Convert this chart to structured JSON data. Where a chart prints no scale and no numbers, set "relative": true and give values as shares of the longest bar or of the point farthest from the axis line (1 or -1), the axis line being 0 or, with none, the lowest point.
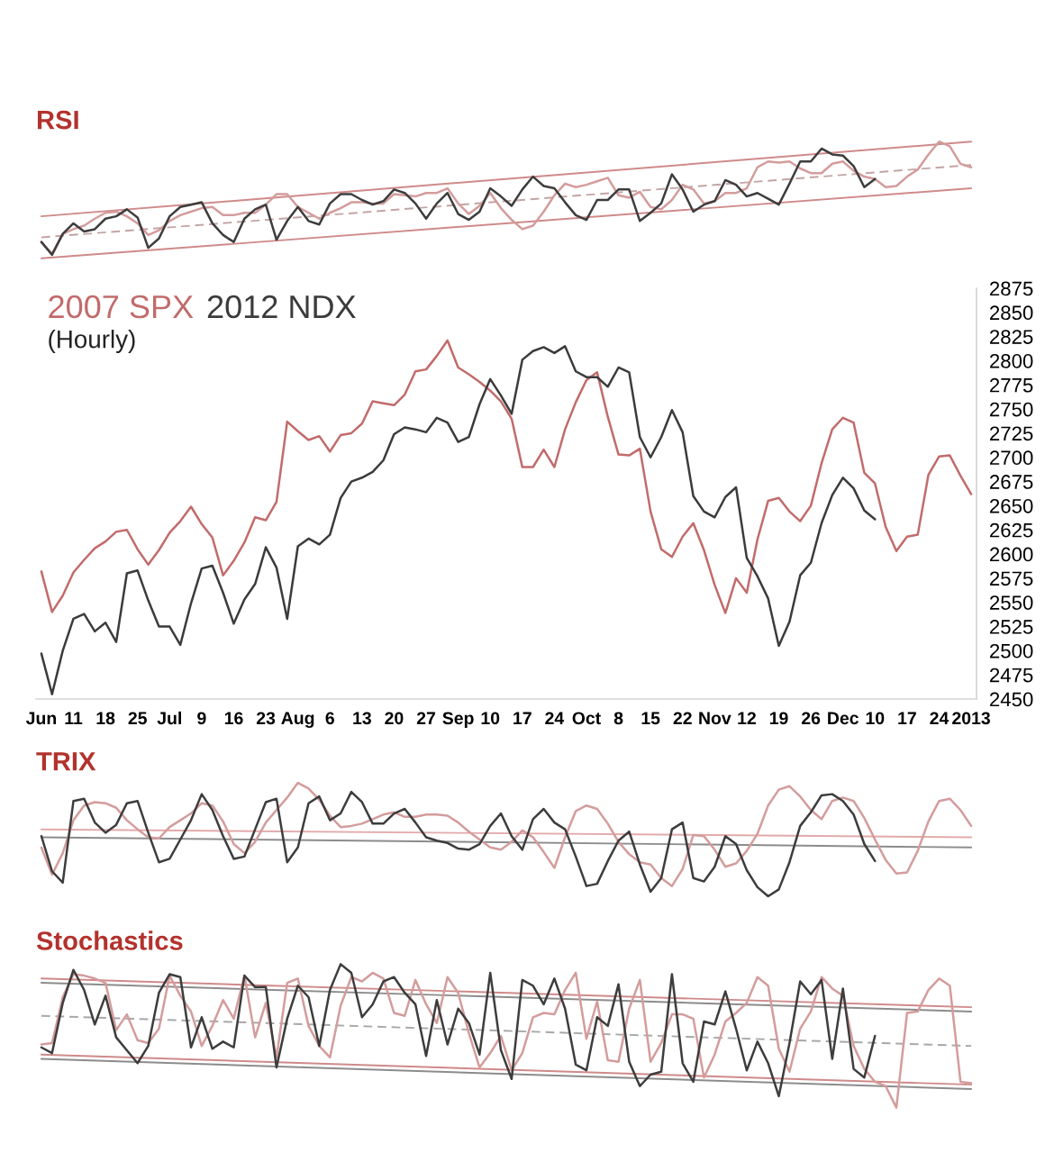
{
  "chart_data": [
    {
      "type": "line",
      "title": "RSI",
      "relative": true,
      "categories": [
        null,
        null,
        null,
        null,
        null,
        null,
        null,
        null,
        null,
        null,
        null,
        null,
        null,
        null,
        null,
        null,
        null,
        null,
        null,
        null,
        null,
        null,
        null,
        null,
        null,
        null,
        null,
        null,
        null,
        null,
        null,
        null,
        null,
        null,
        null,
        null,
        null,
        null,
        null,
        null,
        null,
        null,
        null,
        null,
        null,
        null,
        null,
        null,
        null,
        null,
        null,
        null,
        null,
        null,
        null,
        null,
        null,
        null,
        null,
        null,
        null,
        null,
        null,
        null,
        null,
        null,
        null,
        null,
        null,
        null,
        null,
        null,
        null,
        null,
        null,
        null,
        null,
        null,
        null,
        null,
        null,
        null,
        null,
        null,
        null,
        null,
        null,
        null
      ],
      "series": [
        {
          "color": "#cf8a8a",
          "values": [
            0,
            null,
            null,
            null,
            null,
            null,
            null,
            null,
            null,
            null,
            null,
            null,
            null,
            null,
            null,
            null,
            null,
            null,
            null,
            null,
            null,
            null,
            null,
            null,
            null,
            null,
            null,
            null,
            null,
            null,
            null,
            null,
            null,
            null,
            null,
            null,
            null,
            null,
            null,
            null,
            null,
            null,
            null,
            null,
            null,
            null,
            null,
            null,
            null,
            null,
            null,
            null,
            null,
            null,
            null,
            null,
            null,
            null,
            null,
            null,
            null,
            null,
            null,
            null,
            null,
            null,
            null,
            null,
            null,
            null,
            null,
            null,
            null,
            null,
            null,
            null,
            null,
            null,
            null,
            null,
            null,
            null,
            null,
            null,
            null,
            null,
            null,
            0.6
          ]
        },
        {
          "color": "#c4a4a4",
          "line_style": "dashed",
          "values": [
            0.18,
            null,
            null,
            null,
            null,
            null,
            null,
            null,
            null,
            null,
            null,
            null,
            null,
            null,
            null,
            null,
            null,
            null,
            null,
            null,
            null,
            null,
            null,
            null,
            null,
            null,
            null,
            null,
            null,
            null,
            null,
            null,
            null,
            null,
            null,
            null,
            null,
            null,
            null,
            null,
            null,
            null,
            null,
            null,
            null,
            null,
            null,
            null,
            null,
            null,
            null,
            null,
            null,
            null,
            null,
            null,
            null,
            null,
            null,
            null,
            null,
            null,
            null,
            null,
            null,
            null,
            null,
            null,
            null,
            null,
            null,
            null,
            null,
            null,
            null,
            null,
            null,
            null,
            null,
            null,
            null,
            null,
            null,
            null,
            null,
            null,
            null,
            0.8
          ]
        },
        {
          "color": "#cf8a8a",
          "values": [
            0.36,
            null,
            null,
            null,
            null,
            null,
            null,
            null,
            null,
            null,
            null,
            null,
            null,
            null,
            null,
            null,
            null,
            null,
            null,
            null,
            null,
            null,
            null,
            null,
            null,
            null,
            null,
            null,
            null,
            null,
            null,
            null,
            null,
            null,
            null,
            null,
            null,
            null,
            null,
            null,
            null,
            null,
            null,
            null,
            null,
            null,
            null,
            null,
            null,
            null,
            null,
            null,
            null,
            null,
            null,
            null,
            null,
            null,
            null,
            null,
            null,
            null,
            null,
            null,
            null,
            null,
            null,
            null,
            null,
            null,
            null,
            null,
            null,
            null,
            null,
            null,
            null,
            null,
            null,
            null,
            null,
            null,
            null,
            null,
            null,
            null,
            null,
            1
          ]
        },
        {
          "color": "#d49c9c",
          "values": [
            0.14,
            0.04,
            0.21,
            0.25,
            0.28,
            0.34,
            0.39,
            0.4,
            0.36,
            0.3,
            0.2,
            0.24,
            0.32,
            0.37,
            0.4,
            0.43,
            0.44,
            0.37,
            0.37,
            0.39,
            0.39,
            0.46,
            0.55,
            0.55,
            0.44,
            0.39,
            0.34,
            0.39,
            0.43,
            0.48,
            0.48,
            0.47,
            0.47,
            0.55,
            0.54,
            0.53,
            0.56,
            0.56,
            0.6,
            0.47,
            0.38,
            0.45,
            0.56,
            0.43,
            0.33,
            0.25,
            0.28,
            0.4,
            0.54,
            0.64,
            0.61,
            0.63,
            0.66,
            0.69,
            0.54,
            0.52,
            0.57,
            0.44,
            0.42,
            0.5,
            0.63,
            0.59,
            0.47,
            0.49,
            0.56,
            0.56,
            0.6,
            0.78,
            0.83,
            0.82,
            0.83,
            0.77,
            0.73,
            0.73,
            0.81,
            0.83,
            0.75,
            0.7,
            0.68,
            0.61,
            0.62,
            0.7,
            0.76,
            0.89,
            1.0,
            0.96,
            0.81,
            0.78
          ]
        },
        {
          "color": "#3d3d3d",
          "values": [
            0.14,
            0.03,
            0.21,
            0.3,
            0.23,
            0.25,
            0.34,
            0.36,
            0.42,
            0.35,
            0.09,
            0.17,
            0.36,
            0.44,
            0.46,
            0.48,
            0.3,
            0.2,
            0.14,
            0.34,
            0.42,
            0.46,
            0.16,
            0.32,
            0.44,
            0.32,
            0.29,
            0.47,
            0.55,
            0.55,
            0.5,
            0.46,
            0.49,
            0.59,
            0.56,
            0.47,
            0.34,
            0.47,
            0.56,
            0.38,
            0.33,
            0.4,
            0.6,
            0.53,
            0.45,
            0.59,
            0.7,
            0.62,
            0.6,
            0.48,
            0.37,
            0.33,
            0.5,
            0.5,
            0.59,
            0.59,
            0.32,
            0.39,
            0.47,
            0.72,
            0.59,
            0.4,
            0.46,
            0.49,
            0.67,
            0.63,
            0.53,
            0.56,
            0.51,
            0.46,
            0.64,
            0.83,
            0.83,
            0.94,
            0.89,
            0.88,
            0.79,
            0.61,
            0.68,
            null,
            null,
            null,
            null,
            null,
            null,
            null,
            null,
            null
          ]
        }
      ]
    },
    {
      "type": "line",
      "subtitle": "(Hourly)",
      "categories": [
        "Jun",
        null,
        null,
        "11",
        null,
        null,
        "18",
        null,
        null,
        "25",
        null,
        null,
        "Jul",
        null,
        null,
        "9",
        null,
        null,
        "16",
        null,
        null,
        "23",
        null,
        null,
        "Aug",
        null,
        null,
        "6",
        null,
        null,
        "13",
        null,
        null,
        "20",
        null,
        null,
        "27",
        null,
        null,
        "Sep",
        null,
        null,
        "10",
        null,
        null,
        "17",
        null,
        null,
        "24",
        null,
        null,
        "Oct",
        null,
        null,
        "8",
        null,
        null,
        "15",
        null,
        null,
        "22",
        null,
        null,
        "Nov",
        null,
        null,
        "12",
        null,
        null,
        "19",
        null,
        null,
        "26",
        null,
        null,
        "Dec",
        null,
        null,
        "10",
        null,
        null,
        "17",
        null,
        null,
        "24",
        null,
        null,
        "2013"
      ],
      "ylim": [
        2450,
        2875
      ],
      "yticks": [
        2450,
        2475,
        2500,
        2525,
        2550,
        2575,
        2600,
        2625,
        2650,
        2675,
        2700,
        2725,
        2750,
        2775,
        2800,
        2825,
        2850,
        2875
      ],
      "series": [
        {
          "name": "2007 SPX",
          "color": "#c26b6b",
          "values": [
            2582,
            2540,
            2557,
            2581,
            2594,
            2606,
            2613,
            2623,
            2625,
            2605,
            2589,
            2604,
            2622,
            2634,
            2649,
            2631,
            2617,
            2578,
            2593,
            2612,
            2638,
            2635,
            2654,
            2737,
            2727,
            2718,
            2722,
            2706,
            2723,
            2725,
            2735,
            2758,
            2756,
            2754,
            2765,
            2789,
            2791,
            2805,
            2821,
            2793,
            2786,
            2778,
            2769,
            2758,
            2740,
            2690,
            2690,
            2708,
            2690,
            2729,
            2757,
            2780,
            2788,
            2742,
            2703,
            2702,
            2709,
            2644,
            2605,
            2597,
            2618,
            2632,
            2604,
            2568,
            2539,
            2575,
            2560,
            2615,
            2655,
            2658,
            2644,
            2634,
            2650,
            2694,
            2729,
            2741,
            2736,
            2684,
            2673,
            2628,
            2603,
            2618,
            2620,
            2682,
            2701,
            2702,
            2681,
            2662
          ]
        },
        {
          "name": "2012 NDX",
          "color": "#3b3b3b",
          "values": [
            2497,
            2455,
            2500,
            2533,
            2538,
            2520,
            2529,
            2509,
            2580,
            2583,
            2552,
            2525,
            2525,
            2506,
            2549,
            2585,
            2588,
            2560,
            2528,
            2553,
            2569,
            2607,
            2586,
            2533,
            2608,
            2616,
            2610,
            2620,
            2658,
            2675,
            2679,
            2685,
            2697,
            2724,
            2731,
            2729,
            2726,
            2741,
            2736,
            2716,
            2721,
            2755,
            2781,
            2764,
            2745,
            2801,
            2810,
            2814,
            2808,
            2815,
            2789,
            2783,
            2783,
            2773,
            2793,
            2788,
            2721,
            2700,
            2721,
            2749,
            2726,
            2660,
            2644,
            2638,
            2659,
            2669,
            2596,
            2577,
            2554,
            2505,
            2530,
            2578,
            2591,
            2632,
            2661,
            2679,
            2668,
            2645,
            2636,
            null,
            null,
            null,
            null,
            null,
            null,
            null,
            null,
            null
          ]
        }
      ]
    },
    {
      "type": "line",
      "title": "TRIX",
      "relative": true,
      "categories": [
        null,
        null,
        null,
        null,
        null,
        null,
        null,
        null,
        null,
        null,
        null,
        null,
        null,
        null,
        null,
        null,
        null,
        null,
        null,
        null,
        null,
        null,
        null,
        null,
        null,
        null,
        null,
        null,
        null,
        null,
        null,
        null,
        null,
        null,
        null,
        null,
        null,
        null,
        null,
        null,
        null,
        null,
        null,
        null,
        null,
        null,
        null,
        null,
        null,
        null,
        null,
        null,
        null,
        null,
        null,
        null,
        null,
        null,
        null,
        null,
        null,
        null,
        null,
        null,
        null,
        null,
        null,
        null,
        null,
        null,
        null,
        null,
        null,
        null,
        null,
        null,
        null,
        null,
        null,
        null,
        null,
        null,
        null,
        null,
        null,
        null,
        null,
        null
      ],
      "series": [
        {
          "color": "#e3aaaa",
          "values": [
            0.59,
            null,
            null,
            null,
            null,
            null,
            null,
            null,
            null,
            null,
            null,
            null,
            null,
            null,
            null,
            null,
            null,
            null,
            null,
            null,
            null,
            null,
            null,
            null,
            null,
            null,
            null,
            null,
            null,
            null,
            null,
            null,
            null,
            null,
            null,
            null,
            null,
            null,
            null,
            null,
            null,
            null,
            null,
            null,
            null,
            null,
            null,
            null,
            null,
            null,
            null,
            null,
            null,
            null,
            null,
            null,
            null,
            null,
            null,
            null,
            null,
            null,
            null,
            null,
            null,
            null,
            null,
            null,
            null,
            null,
            null,
            null,
            null,
            null,
            null,
            null,
            null,
            null,
            null,
            null,
            null,
            null,
            null,
            null,
            null,
            null,
            null,
            0.52
          ]
        },
        {
          "color": "#8c8c8c",
          "values": [
            0.52,
            null,
            null,
            null,
            null,
            null,
            null,
            null,
            null,
            null,
            null,
            null,
            null,
            null,
            null,
            null,
            null,
            null,
            null,
            null,
            null,
            null,
            null,
            null,
            null,
            null,
            null,
            null,
            null,
            null,
            null,
            null,
            null,
            null,
            null,
            null,
            null,
            null,
            null,
            null,
            null,
            null,
            null,
            null,
            null,
            null,
            null,
            null,
            null,
            null,
            null,
            null,
            null,
            null,
            null,
            null,
            null,
            null,
            null,
            null,
            null,
            null,
            null,
            null,
            null,
            null,
            null,
            null,
            null,
            null,
            null,
            null,
            null,
            null,
            null,
            null,
            null,
            null,
            null,
            null,
            null,
            null,
            null,
            null,
            null,
            null,
            null,
            0.43
          ]
        },
        {
          "color": "#d49c9c",
          "values": [
            0.43,
            0.19,
            0.38,
            0.67,
            0.8,
            0.83,
            0.82,
            0.78,
            0.67,
            0.59,
            0.52,
            0.51,
            0.61,
            0.67,
            0.73,
            0.82,
            0.8,
            0.66,
            0.46,
            0.38,
            0.48,
            0.65,
            0.76,
            0.87,
            1.0,
            0.95,
            0.85,
            0.71,
            0.61,
            0.62,
            0.64,
            0.68,
            0.72,
            0.74,
            0.7,
            0.7,
            0.72,
            0.72,
            0.71,
            0.65,
            0.57,
            0.5,
            0.43,
            0.41,
            0.48,
            0.58,
            0.52,
            0.39,
            0.25,
            0.52,
            0.75,
            0.8,
            0.77,
            0.64,
            0.48,
            0.37,
            0.3,
            0.28,
            0.16,
            0.09,
            0.24,
            0.54,
            0.53,
            0.41,
            0.26,
            0.29,
            0.4,
            0.55,
            0.8,
            0.94,
            0.97,
            0.88,
            0.76,
            0.68,
            0.84,
            0.87,
            0.84,
            0.69,
            0.5,
            0.32,
            0.2,
            0.21,
            0.4,
            0.66,
            0.84,
            0.86,
            0.76,
            0.62
          ]
        },
        {
          "color": "#3d3d3d",
          "values": [
            0.53,
            0.22,
            0.12,
            0.84,
            0.86,
            0.65,
            0.56,
            0.63,
            0.82,
            0.84,
            0.56,
            0.3,
            0.33,
            0.5,
            0.67,
            0.9,
            0.76,
            0.53,
            0.33,
            0.35,
            0.59,
            0.83,
            0.86,
            0.3,
            0.43,
            0.82,
            0.88,
            0.67,
            0.73,
            0.92,
            0.83,
            0.64,
            0.64,
            0.73,
            0.77,
            0.65,
            0.52,
            0.49,
            0.47,
            0.42,
            0.41,
            0.46,
            0.62,
            0.73,
            0.53,
            0.41,
            0.68,
            0.77,
            0.65,
            0.59,
            0.35,
            0.09,
            0.11,
            0.31,
            0.49,
            0.57,
            0.28,
            0.04,
            0.16,
            0.59,
            0.65,
            0.16,
            0.13,
            0.26,
            0.53,
            0.46,
            0.23,
            0.08,
            0.0,
            0.06,
            0.3,
            0.62,
            0.74,
            0.89,
            0.9,
            0.84,
            0.72,
            0.46,
            0.31,
            null,
            null,
            null,
            null,
            null,
            null,
            null,
            null,
            null
          ]
        }
      ]
    },
    {
      "type": "line",
      "title": "Stochastics",
      "relative": true,
      "categories": [
        null,
        null,
        null,
        null,
        null,
        null,
        null,
        null,
        null,
        null,
        null,
        null,
        null,
        null,
        null,
        null,
        null,
        null,
        null,
        null,
        null,
        null,
        null,
        null,
        null,
        null,
        null,
        null,
        null,
        null,
        null,
        null,
        null,
        null,
        null,
        null,
        null,
        null,
        null,
        null,
        null,
        null,
        null,
        null,
        null,
        null,
        null,
        null,
        null,
        null,
        null,
        null,
        null,
        null,
        null,
        null,
        null,
        null,
        null,
        null,
        null,
        null,
        null,
        null,
        null,
        null,
        null,
        null,
        null,
        null,
        null,
        null,
        null,
        null,
        null,
        null,
        null,
        null,
        null,
        null,
        null,
        null,
        null,
        null,
        null,
        null,
        null,
        null
      ],
      "series": [
        {
          "color": "#cf8a8a",
          "values": [
            0.9,
            null,
            null,
            null,
            null,
            null,
            null,
            null,
            null,
            null,
            null,
            null,
            null,
            null,
            null,
            null,
            null,
            null,
            null,
            null,
            null,
            null,
            null,
            null,
            null,
            null,
            null,
            null,
            null,
            null,
            null,
            null,
            null,
            null,
            null,
            null,
            null,
            null,
            null,
            null,
            null,
            null,
            null,
            null,
            null,
            null,
            null,
            null,
            null,
            null,
            null,
            null,
            null,
            null,
            null,
            null,
            null,
            null,
            null,
            null,
            null,
            null,
            null,
            null,
            null,
            null,
            null,
            null,
            null,
            null,
            null,
            null,
            null,
            null,
            null,
            null,
            null,
            null,
            null,
            null,
            null,
            null,
            null,
            null,
            null,
            null,
            null,
            0.7
          ]
        },
        {
          "color": "#8c8c8c",
          "values": [
            0.87,
            null,
            null,
            null,
            null,
            null,
            null,
            null,
            null,
            null,
            null,
            null,
            null,
            null,
            null,
            null,
            null,
            null,
            null,
            null,
            null,
            null,
            null,
            null,
            null,
            null,
            null,
            null,
            null,
            null,
            null,
            null,
            null,
            null,
            null,
            null,
            null,
            null,
            null,
            null,
            null,
            null,
            null,
            null,
            null,
            null,
            null,
            null,
            null,
            null,
            null,
            null,
            null,
            null,
            null,
            null,
            null,
            null,
            null,
            null,
            null,
            null,
            null,
            null,
            null,
            null,
            null,
            null,
            null,
            null,
            null,
            null,
            null,
            null,
            null,
            null,
            null,
            null,
            null,
            null,
            null,
            null,
            null,
            null,
            null,
            null,
            null,
            0.67
          ]
        },
        {
          "color": "#a8a8a8",
          "line_style": "dashed",
          "values": [
            0.64,
            null,
            null,
            null,
            null,
            null,
            null,
            null,
            null,
            null,
            null,
            null,
            null,
            null,
            null,
            null,
            null,
            null,
            null,
            null,
            null,
            null,
            null,
            null,
            null,
            null,
            null,
            null,
            null,
            null,
            null,
            null,
            null,
            null,
            null,
            null,
            null,
            null,
            null,
            null,
            null,
            null,
            null,
            null,
            null,
            null,
            null,
            null,
            null,
            null,
            null,
            null,
            null,
            null,
            null,
            null,
            null,
            null,
            null,
            null,
            null,
            null,
            null,
            null,
            null,
            null,
            null,
            null,
            null,
            null,
            null,
            null,
            null,
            null,
            null,
            null,
            null,
            null,
            null,
            null,
            null,
            null,
            null,
            null,
            null,
            null,
            null,
            0.43
          ]
        },
        {
          "color": "#cf8a8a",
          "values": [
            0.37,
            null,
            null,
            null,
            null,
            null,
            null,
            null,
            null,
            null,
            null,
            null,
            null,
            null,
            null,
            null,
            null,
            null,
            null,
            null,
            null,
            null,
            null,
            null,
            null,
            null,
            null,
            null,
            null,
            null,
            null,
            null,
            null,
            null,
            null,
            null,
            null,
            null,
            null,
            null,
            null,
            null,
            null,
            null,
            null,
            null,
            null,
            null,
            null,
            null,
            null,
            null,
            null,
            null,
            null,
            null,
            null,
            null,
            null,
            null,
            null,
            null,
            null,
            null,
            null,
            null,
            null,
            null,
            null,
            null,
            null,
            null,
            null,
            null,
            null,
            null,
            null,
            null,
            null,
            null,
            null,
            null,
            null,
            null,
            null,
            null,
            null,
            0.16
          ]
        },
        {
          "color": "#8c8c8c",
          "values": [
            0.34,
            null,
            null,
            null,
            null,
            null,
            null,
            null,
            null,
            null,
            null,
            null,
            null,
            null,
            null,
            null,
            null,
            null,
            null,
            null,
            null,
            null,
            null,
            null,
            null,
            null,
            null,
            null,
            null,
            null,
            null,
            null,
            null,
            null,
            null,
            null,
            null,
            null,
            null,
            null,
            null,
            null,
            null,
            null,
            null,
            null,
            null,
            null,
            null,
            null,
            null,
            null,
            null,
            null,
            null,
            null,
            null,
            null,
            null,
            null,
            null,
            null,
            null,
            null,
            null,
            null,
            null,
            null,
            null,
            null,
            null,
            null,
            null,
            null,
            null,
            null,
            null,
            null,
            null,
            null,
            null,
            null,
            null,
            null,
            null,
            null,
            null,
            0.13
          ]
        },
        {
          "color": "#d49c9c",
          "values": [
            0.44,
            0.45,
            0.77,
            0.93,
            0.92,
            0.9,
            0.87,
            0.54,
            0.65,
            0.47,
            0.45,
            0.55,
            0.92,
            0.78,
            0.67,
            0.43,
            0.57,
            0.75,
            0.62,
            0.92,
            0.49,
            0.73,
            0.35,
            0.87,
            0.9,
            0.57,
            0.43,
            0.35,
            0.71,
            0.91,
            0.88,
            0.94,
            0.9,
            0.66,
            0.64,
            0.89,
            0.72,
            0.59,
            0.91,
            0.8,
            0.52,
            0.28,
            0.38,
            0.5,
            0.26,
            0.38,
            0.63,
            0.66,
            0.65,
            0.82,
            0.94,
            0.48,
            0.74,
            0.33,
            0.32,
            0.69,
            0.89,
            0.32,
            0.45,
            0.65,
            0.65,
            0.62,
            0.21,
            0.37,
            0.6,
            0.66,
            0.73,
            0.91,
            0.85,
            0.41,
            0.25,
            0.55,
            0.67,
            0.91,
            0.83,
            0.78,
            0.43,
            0.27,
            0.18,
            0.15,
            0.0,
            0.66,
            0.67,
            0.82,
            0.9,
            0.85,
            0.18,
            0.17
          ]
        },
        {
          "color": "#3d3d3d",
          "values": [
            0.42,
            0.38,
            0.73,
            0.96,
            0.82,
            0.58,
            0.78,
            0.49,
            0.4,
            0.31,
            0.43,
            0.8,
            0.93,
            0.91,
            0.42,
            0.63,
            0.41,
            0.46,
            0.42,
            0.92,
            0.84,
            0.84,
            0.28,
            0.62,
            0.85,
            0.77,
            0.43,
            0.82,
            1.0,
            0.94,
            0.63,
            0.72,
            0.88,
            0.91,
            0.8,
            0.72,
            0.36,
            0.75,
            0.44,
            0.69,
            0.59,
            0.37,
            0.94,
            0.4,
            0.2,
            0.89,
            0.85,
            0.72,
            0.9,
            0.69,
            0.3,
            0.26,
            0.63,
            0.57,
            0.86,
            0.32,
            0.15,
            0.23,
            0.25,
            0.93,
            0.31,
            0.18,
            0.6,
            0.58,
            0.81,
            0.55,
            0.26,
            0.46,
            0.31,
            0.08,
            0.45,
            0.88,
            0.79,
            0.89,
            0.34,
            0.83,
            0.27,
            0.21,
            0.5,
            null,
            null,
            null,
            null,
            null,
            null,
            null,
            null,
            null
          ]
        }
      ]
    }
  ]
}
